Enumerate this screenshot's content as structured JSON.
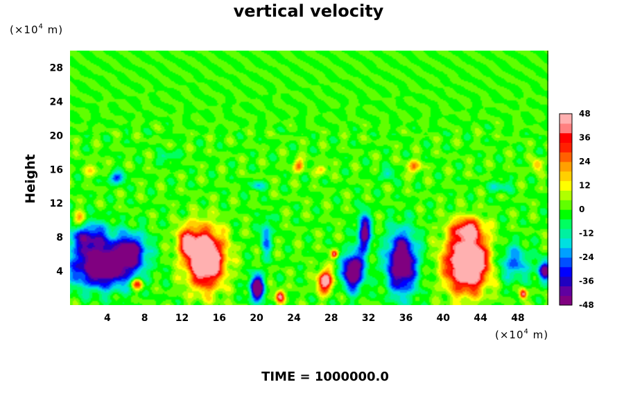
{
  "chart_data": {
    "type": "heatmap",
    "title": "vertical velocity",
    "xlabel": "",
    "ylabel": "Height",
    "x_unit": {
      "prefix": "(×10",
      "exp": "4",
      "suffix": " m)"
    },
    "y_unit": {
      "prefix": "(×10",
      "exp": "4",
      "suffix": " m)"
    },
    "xlim": [
      0,
      51.2
    ],
    "ylim": [
      0,
      30
    ],
    "x_ticks": [
      "4",
      "8",
      "12",
      "16",
      "20",
      "24",
      "28",
      "32",
      "36",
      "40",
      "44",
      "48"
    ],
    "y_ticks": [
      "4",
      "8",
      "12",
      "16",
      "20",
      "24",
      "28"
    ],
    "colorbar": {
      "range": [
        -48,
        48
      ],
      "ticks": [
        "48",
        "36",
        "24",
        "12",
        "0",
        "-12",
        "-24",
        "-36",
        "-48"
      ],
      "colors": [
        "#800080",
        "#6000a0",
        "#2000c0",
        "#0000ff",
        "#0050ff",
        "#00a0ff",
        "#00e0e0",
        "#00f0a0",
        "#00ff60",
        "#00ff00",
        "#60ff00",
        "#b0ff00",
        "#ffff00",
        "#ffd000",
        "#ffa000",
        "#ff6000",
        "#ff2000",
        "#ff0000",
        "#ff8080",
        "#ffb0b0"
      ]
    },
    "features": [
      {
        "x": 3.5,
        "y": 4.5,
        "sx": 3.6,
        "sy": 2.6,
        "w": -60
      },
      {
        "x": 6.5,
        "y": 6.5,
        "sx": 1.8,
        "sy": 2.2,
        "w": -40
      },
      {
        "x": 2.0,
        "y": 8.0,
        "sx": 2.5,
        "sy": 2.0,
        "w": -35
      },
      {
        "x": 1.0,
        "y": 10.0,
        "sx": 0.8,
        "sy": 1.0,
        "w": 25
      },
      {
        "x": 7.2,
        "y": 2.5,
        "sx": 0.7,
        "sy": 0.7,
        "w": 35
      },
      {
        "x": 14.5,
        "y": 5.5,
        "sx": 2.1,
        "sy": 3.6,
        "w": 70
      },
      {
        "x": 12.5,
        "y": 7.5,
        "sx": 1.2,
        "sy": 2.0,
        "w": 30
      },
      {
        "x": 20.0,
        "y": 2.0,
        "sx": 0.8,
        "sy": 1.6,
        "w": -60
      },
      {
        "x": 21.0,
        "y": 8.0,
        "sx": 0.6,
        "sy": 2.5,
        "w": -25
      },
      {
        "x": 22.5,
        "y": 1.0,
        "sx": 0.5,
        "sy": 0.8,
        "w": 45
      },
      {
        "x": 27.3,
        "y": 2.8,
        "sx": 0.8,
        "sy": 1.4,
        "w": 55
      },
      {
        "x": 28.3,
        "y": 6.0,
        "sx": 0.4,
        "sy": 0.5,
        "w": 40
      },
      {
        "x": 30.3,
        "y": 4.0,
        "sx": 1.2,
        "sy": 2.3,
        "w": -60
      },
      {
        "x": 31.5,
        "y": 8.5,
        "sx": 0.7,
        "sy": 2.4,
        "w": -50
      },
      {
        "x": 35.5,
        "y": 5.0,
        "sx": 1.7,
        "sy": 3.8,
        "w": -60
      },
      {
        "x": 42.5,
        "y": 5.0,
        "sx": 2.4,
        "sy": 3.6,
        "w": 75
      },
      {
        "x": 42.5,
        "y": 9.0,
        "sx": 1.8,
        "sy": 1.3,
        "w": 35
      },
      {
        "x": 48.5,
        "y": 1.3,
        "sx": 0.4,
        "sy": 0.6,
        "w": 45
      },
      {
        "x": 47.5,
        "y": 5.0,
        "sx": 1.8,
        "sy": 2.2,
        "w": -25
      },
      {
        "x": 50.8,
        "y": 4.0,
        "sx": 0.8,
        "sy": 1.3,
        "w": -45
      },
      {
        "x": 5.0,
        "y": 15.0,
        "sx": 1.0,
        "sy": 0.7,
        "w": -30
      },
      {
        "x": 2.5,
        "y": 16.0,
        "sx": 1.0,
        "sy": 0.8,
        "w": 12
      },
      {
        "x": 24.5,
        "y": 16.5,
        "sx": 0.6,
        "sy": 0.8,
        "w": 28
      },
      {
        "x": 27.0,
        "y": 16.0,
        "sx": 0.6,
        "sy": 0.6,
        "w": 20
      },
      {
        "x": 36.8,
        "y": 16.3,
        "sx": 0.8,
        "sy": 0.8,
        "w": 25
      },
      {
        "x": 50.0,
        "y": 16.5,
        "sx": 0.6,
        "sy": 0.7,
        "w": 22
      },
      {
        "x": 20.0,
        "y": 14.0,
        "sx": 0.8,
        "sy": 0.6,
        "w": -20
      },
      {
        "x": 34.0,
        "y": 15.5,
        "sx": 0.8,
        "sy": 0.7,
        "w": -18
      },
      {
        "x": 10.5,
        "y": 17.5,
        "sx": 1.0,
        "sy": 0.6,
        "w": -15
      },
      {
        "x": 46.0,
        "y": 14.0,
        "sx": 1.2,
        "sy": 0.8,
        "w": -15
      }
    ],
    "footer": "TIME = 1000000.0"
  }
}
